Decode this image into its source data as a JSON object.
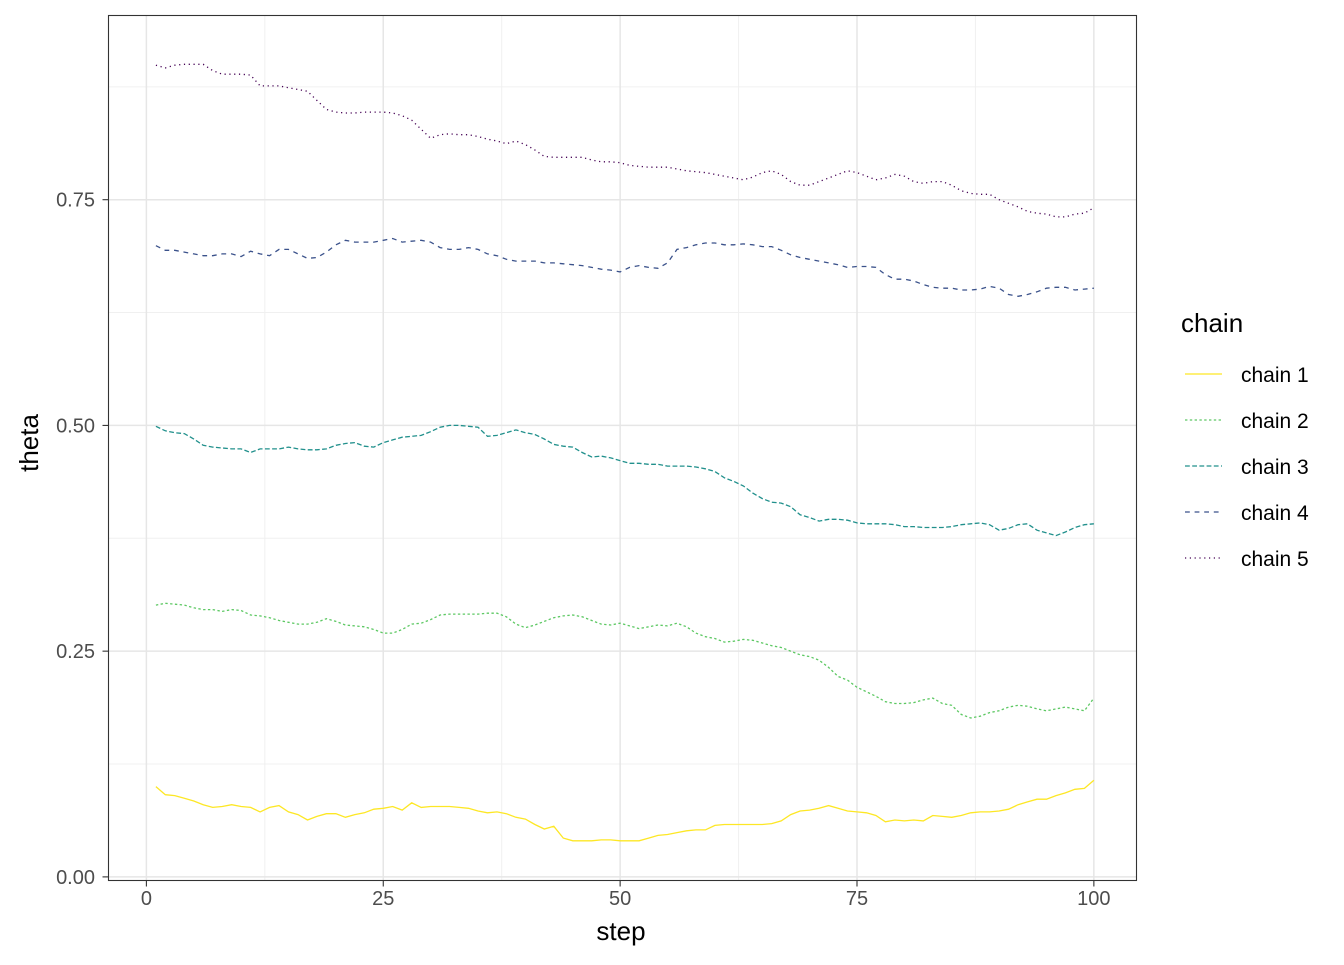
{
  "chart_data": {
    "type": "line",
    "xlabel": "step",
    "ylabel": "theta",
    "xlim": [
      -4,
      104.5
    ],
    "ylim": [
      -0.004,
      0.954
    ],
    "x_ticks": [
      0,
      25,
      50,
      75,
      100
    ],
    "x_tick_labels": [
      "0",
      "25",
      "50",
      "75",
      "100"
    ],
    "y_ticks": [
      0,
      0.25,
      0.5,
      0.75
    ],
    "y_tick_labels": [
      "0.00",
      "0.25",
      "0.50",
      "0.75"
    ],
    "grid": true,
    "legend": {
      "title": "chain",
      "placement": "right"
    },
    "x": "steps 1..100",
    "series": [
      {
        "name": "chain 1",
        "color": "#FDE725",
        "linetype": "solid",
        "values": [
          0.1,
          0.091,
          0.09,
          0.087,
          0.084,
          0.08,
          0.077,
          0.078,
          0.08,
          0.078,
          0.077,
          0.072,
          0.077,
          0.079,
          0.072,
          0.069,
          0.063,
          0.067,
          0.07,
          0.07,
          0.066,
          0.069,
          0.071,
          0.075,
          0.076,
          0.078,
          0.074,
          0.082,
          0.077,
          0.078,
          0.078,
          0.078,
          0.077,
          0.076,
          0.073,
          0.071,
          0.072,
          0.07,
          0.066,
          0.064,
          0.058,
          0.053,
          0.056,
          0.043,
          0.04,
          0.04,
          0.04,
          0.041,
          0.041,
          0.04,
          0.04,
          0.04,
          0.043,
          0.046,
          0.047,
          0.049,
          0.051,
          0.052,
          0.052,
          0.057,
          0.058,
          0.058,
          0.058,
          0.058,
          0.058,
          0.059,
          0.062,
          0.069,
          0.073,
          0.074,
          0.076,
          0.079,
          0.076,
          0.073,
          0.072,
          0.071,
          0.068,
          0.061,
          0.063,
          0.062,
          0.063,
          0.062,
          0.068,
          0.067,
          0.066,
          0.068,
          0.071,
          0.072,
          0.072,
          0.073,
          0.075,
          0.08,
          0.083,
          0.086,
          0.086,
          0.09,
          0.093,
          0.097,
          0.098,
          0.107
        ]
      },
      {
        "name": "chain 2",
        "color": "#5DC863",
        "linetype": "22",
        "values": [
          0.301,
          0.303,
          0.302,
          0.301,
          0.298,
          0.296,
          0.296,
          0.294,
          0.296,
          0.295,
          0.29,
          0.289,
          0.287,
          0.284,
          0.282,
          0.28,
          0.28,
          0.282,
          0.286,
          0.283,
          0.279,
          0.278,
          0.277,
          0.274,
          0.27,
          0.27,
          0.274,
          0.28,
          0.281,
          0.285,
          0.29,
          0.291,
          0.291,
          0.291,
          0.291,
          0.292,
          0.292,
          0.288,
          0.28,
          0.276,
          0.279,
          0.283,
          0.287,
          0.289,
          0.29,
          0.288,
          0.284,
          0.28,
          0.279,
          0.281,
          0.278,
          0.275,
          0.277,
          0.279,
          0.278,
          0.281,
          0.277,
          0.27,
          0.266,
          0.264,
          0.26,
          0.261,
          0.263,
          0.262,
          0.259,
          0.256,
          0.254,
          0.25,
          0.246,
          0.244,
          0.24,
          0.232,
          0.222,
          0.218,
          0.21,
          0.205,
          0.2,
          0.194,
          0.192,
          0.192,
          0.193,
          0.196,
          0.198,
          0.192,
          0.19,
          0.18,
          0.176,
          0.178,
          0.182,
          0.184,
          0.188,
          0.19,
          0.189,
          0.186,
          0.184,
          0.186,
          0.188,
          0.186,
          0.184,
          0.198
        ]
      },
      {
        "name": "chain 3",
        "color": "#21908C",
        "linetype": "42",
        "values": [
          0.499,
          0.494,
          0.492,
          0.491,
          0.485,
          0.478,
          0.476,
          0.475,
          0.474,
          0.474,
          0.47,
          0.474,
          0.474,
          0.474,
          0.476,
          0.474,
          0.473,
          0.473,
          0.474,
          0.478,
          0.48,
          0.481,
          0.477,
          0.476,
          0.481,
          0.484,
          0.487,
          0.488,
          0.489,
          0.493,
          0.498,
          0.5,
          0.5,
          0.499,
          0.498,
          0.488,
          0.489,
          0.492,
          0.495,
          0.492,
          0.49,
          0.485,
          0.479,
          0.477,
          0.476,
          0.47,
          0.465,
          0.466,
          0.464,
          0.461,
          0.458,
          0.458,
          0.457,
          0.457,
          0.455,
          0.455,
          0.455,
          0.454,
          0.452,
          0.449,
          0.442,
          0.438,
          0.433,
          0.425,
          0.419,
          0.415,
          0.414,
          0.41,
          0.401,
          0.398,
          0.394,
          0.396,
          0.396,
          0.395,
          0.392,
          0.391,
          0.391,
          0.391,
          0.39,
          0.388,
          0.388,
          0.387,
          0.387,
          0.387,
          0.388,
          0.39,
          0.391,
          0.392,
          0.39,
          0.384,
          0.386,
          0.39,
          0.391,
          0.384,
          0.381,
          0.378,
          0.382,
          0.387,
          0.39,
          0.391
        ]
      },
      {
        "name": "chain 4",
        "color": "#3B528B",
        "linetype": "44",
        "values": [
          0.699,
          0.694,
          0.694,
          0.692,
          0.69,
          0.688,
          0.688,
          0.69,
          0.69,
          0.687,
          0.693,
          0.69,
          0.688,
          0.695,
          0.695,
          0.69,
          0.685,
          0.686,
          0.692,
          0.7,
          0.705,
          0.703,
          0.703,
          0.703,
          0.705,
          0.707,
          0.703,
          0.704,
          0.705,
          0.703,
          0.697,
          0.695,
          0.695,
          0.697,
          0.695,
          0.69,
          0.688,
          0.684,
          0.682,
          0.682,
          0.682,
          0.68,
          0.68,
          0.679,
          0.678,
          0.677,
          0.675,
          0.673,
          0.672,
          0.67,
          0.675,
          0.677,
          0.675,
          0.674,
          0.68,
          0.695,
          0.697,
          0.7,
          0.702,
          0.702,
          0.7,
          0.7,
          0.701,
          0.7,
          0.698,
          0.698,
          0.694,
          0.689,
          0.686,
          0.684,
          0.682,
          0.68,
          0.678,
          0.675,
          0.676,
          0.676,
          0.675,
          0.667,
          0.662,
          0.662,
          0.66,
          0.656,
          0.653,
          0.652,
          0.652,
          0.65,
          0.65,
          0.651,
          0.654,
          0.652,
          0.645,
          0.643,
          0.645,
          0.648,
          0.652,
          0.653,
          0.653,
          0.65,
          0.651,
          0.652
        ]
      },
      {
        "name": "chain 5",
        "color": "#440154",
        "linetype": "13",
        "values": [
          0.899,
          0.896,
          0.899,
          0.9,
          0.9,
          0.9,
          0.893,
          0.889,
          0.889,
          0.889,
          0.888,
          0.876,
          0.876,
          0.876,
          0.874,
          0.872,
          0.87,
          0.86,
          0.85,
          0.847,
          0.846,
          0.846,
          0.847,
          0.847,
          0.847,
          0.846,
          0.843,
          0.838,
          0.828,
          0.818,
          0.822,
          0.823,
          0.822,
          0.822,
          0.82,
          0.817,
          0.815,
          0.812,
          0.815,
          0.811,
          0.805,
          0.798,
          0.797,
          0.797,
          0.797,
          0.797,
          0.794,
          0.792,
          0.792,
          0.791,
          0.788,
          0.787,
          0.786,
          0.786,
          0.786,
          0.784,
          0.782,
          0.781,
          0.78,
          0.778,
          0.776,
          0.774,
          0.772,
          0.775,
          0.78,
          0.782,
          0.778,
          0.77,
          0.766,
          0.766,
          0.77,
          0.774,
          0.778,
          0.782,
          0.78,
          0.776,
          0.772,
          0.774,
          0.778,
          0.776,
          0.77,
          0.768,
          0.77,
          0.77,
          0.766,
          0.76,
          0.757,
          0.756,
          0.756,
          0.75,
          0.746,
          0.742,
          0.737,
          0.735,
          0.734,
          0.731,
          0.731,
          0.734,
          0.735,
          0.741
        ]
      }
    ]
  }
}
